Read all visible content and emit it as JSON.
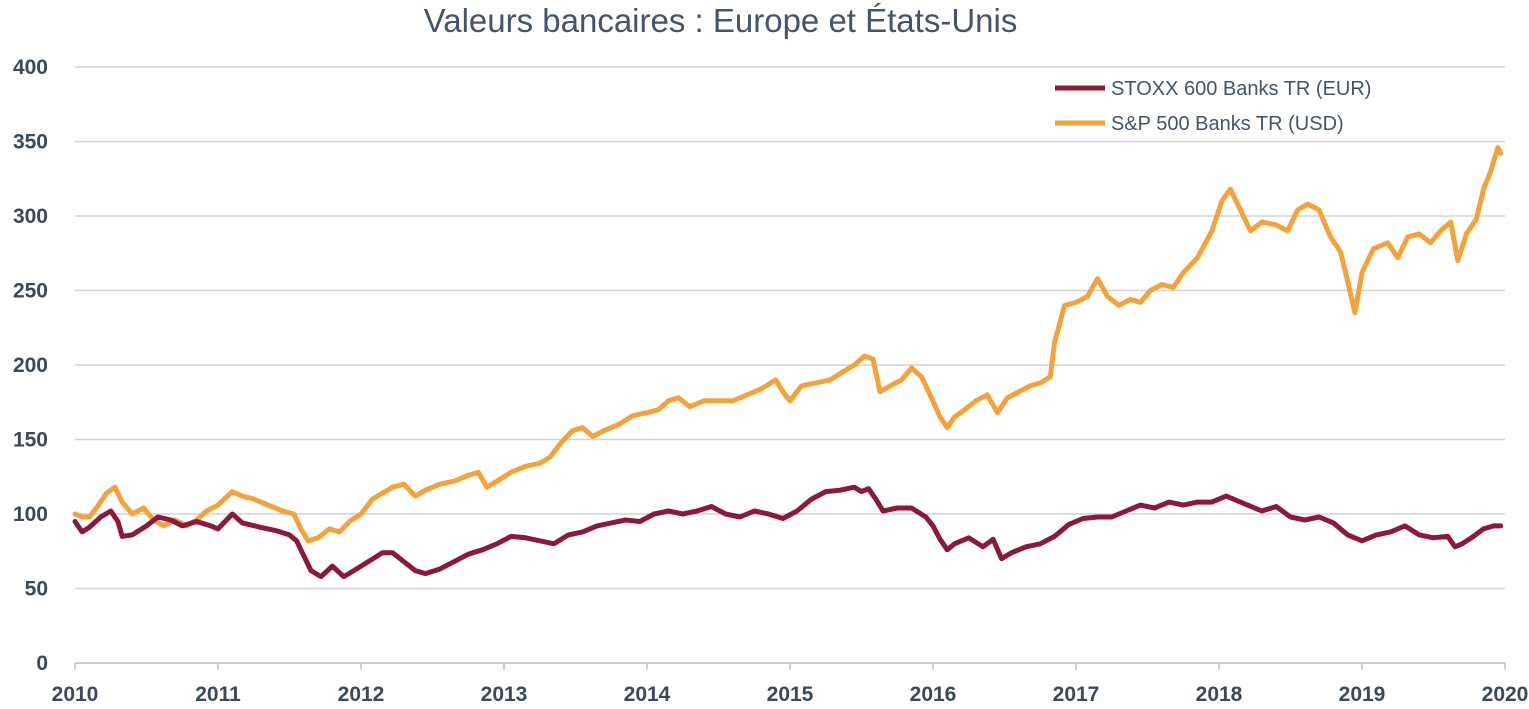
{
  "chart_data": {
    "type": "line",
    "title": "Valeurs bancaires : Europe et États-Unis",
    "xlabel": "",
    "ylabel": "",
    "ylim": [
      0,
      400
    ],
    "xlim": [
      2010,
      2020
    ],
    "yticks": [
      "0",
      "50",
      "100",
      "150",
      "200",
      "250",
      "300",
      "350",
      "400"
    ],
    "xticks": [
      "2010",
      "2011",
      "2012",
      "2013",
      "2014",
      "2015",
      "2016",
      "2017",
      "2018",
      "2019",
      "2020"
    ],
    "grid": true,
    "legend_position": "top-right",
    "series": [
      {
        "name": "STOXX 600 Banks TR (EUR)",
        "color": "#8b1a3a",
        "points": [
          [
            2010.0,
            95
          ],
          [
            2010.05,
            88
          ],
          [
            2010.1,
            91
          ],
          [
            2010.18,
            98
          ],
          [
            2010.25,
            102
          ],
          [
            2010.3,
            95
          ],
          [
            2010.33,
            85
          ],
          [
            2010.4,
            86
          ],
          [
            2010.5,
            92
          ],
          [
            2010.58,
            98
          ],
          [
            2010.67,
            96
          ],
          [
            2010.75,
            92
          ],
          [
            2010.85,
            95
          ],
          [
            2010.95,
            92
          ],
          [
            2011.0,
            90
          ],
          [
            2011.1,
            100
          ],
          [
            2011.17,
            94
          ],
          [
            2011.3,
            91
          ],
          [
            2011.4,
            89
          ],
          [
            2011.5,
            86
          ],
          [
            2011.55,
            82
          ],
          [
            2011.6,
            72
          ],
          [
            2011.65,
            62
          ],
          [
            2011.72,
            58
          ],
          [
            2011.8,
            65
          ],
          [
            2011.88,
            58
          ],
          [
            2011.95,
            62
          ],
          [
            2012.05,
            68
          ],
          [
            2012.15,
            74
          ],
          [
            2012.22,
            74
          ],
          [
            2012.3,
            68
          ],
          [
            2012.38,
            62
          ],
          [
            2012.45,
            60
          ],
          [
            2012.55,
            63
          ],
          [
            2012.65,
            68
          ],
          [
            2012.75,
            73
          ],
          [
            2012.85,
            76
          ],
          [
            2012.95,
            80
          ],
          [
            2013.05,
            85
          ],
          [
            2013.15,
            84
          ],
          [
            2013.25,
            82
          ],
          [
            2013.35,
            80
          ],
          [
            2013.45,
            86
          ],
          [
            2013.55,
            88
          ],
          [
            2013.65,
            92
          ],
          [
            2013.75,
            94
          ],
          [
            2013.85,
            96
          ],
          [
            2013.95,
            95
          ],
          [
            2014.05,
            100
          ],
          [
            2014.15,
            102
          ],
          [
            2014.25,
            100
          ],
          [
            2014.35,
            102
          ],
          [
            2014.45,
            105
          ],
          [
            2014.55,
            100
          ],
          [
            2014.65,
            98
          ],
          [
            2014.75,
            102
          ],
          [
            2014.85,
            100
          ],
          [
            2014.95,
            97
          ],
          [
            2015.05,
            102
          ],
          [
            2015.15,
            110
          ],
          [
            2015.25,
            115
          ],
          [
            2015.35,
            116
          ],
          [
            2015.45,
            118
          ],
          [
            2015.5,
            115
          ],
          [
            2015.55,
            117
          ],
          [
            2015.6,
            110
          ],
          [
            2015.65,
            102
          ],
          [
            2015.75,
            104
          ],
          [
            2015.85,
            104
          ],
          [
            2015.95,
            98
          ],
          [
            2016.0,
            92
          ],
          [
            2016.05,
            83
          ],
          [
            2016.1,
            76
          ],
          [
            2016.15,
            80
          ],
          [
            2016.25,
            84
          ],
          [
            2016.35,
            78
          ],
          [
            2016.42,
            83
          ],
          [
            2016.48,
            70
          ],
          [
            2016.55,
            74
          ],
          [
            2016.65,
            78
          ],
          [
            2016.75,
            80
          ],
          [
            2016.85,
            85
          ],
          [
            2016.95,
            93
          ],
          [
            2017.05,
            97
          ],
          [
            2017.15,
            98
          ],
          [
            2017.25,
            98
          ],
          [
            2017.35,
            102
          ],
          [
            2017.45,
            106
          ],
          [
            2017.55,
            104
          ],
          [
            2017.65,
            108
          ],
          [
            2017.75,
            106
          ],
          [
            2017.85,
            108
          ],
          [
            2017.95,
            108
          ],
          [
            2018.05,
            112
          ],
          [
            2018.1,
            110
          ],
          [
            2018.2,
            106
          ],
          [
            2018.3,
            102
          ],
          [
            2018.4,
            105
          ],
          [
            2018.5,
            98
          ],
          [
            2018.6,
            96
          ],
          [
            2018.7,
            98
          ],
          [
            2018.8,
            94
          ],
          [
            2018.9,
            86
          ],
          [
            2019.0,
            82
          ],
          [
            2019.1,
            86
          ],
          [
            2019.2,
            88
          ],
          [
            2019.3,
            92
          ],
          [
            2019.4,
            86
          ],
          [
            2019.5,
            84
          ],
          [
            2019.6,
            85
          ],
          [
            2019.65,
            78
          ],
          [
            2019.7,
            80
          ],
          [
            2019.78,
            85
          ],
          [
            2019.85,
            90
          ],
          [
            2019.92,
            92
          ],
          [
            2019.97,
            92
          ]
        ]
      },
      {
        "name": "S&P 500 Banks TR (USD)",
        "color": "#f4a23c",
        "points": [
          [
            2010.0,
            100
          ],
          [
            2010.05,
            98
          ],
          [
            2010.1,
            98
          ],
          [
            2010.15,
            104
          ],
          [
            2010.22,
            114
          ],
          [
            2010.28,
            118
          ],
          [
            2010.33,
            108
          ],
          [
            2010.4,
            100
          ],
          [
            2010.48,
            104
          ],
          [
            2010.55,
            96
          ],
          [
            2010.62,
            92
          ],
          [
            2010.7,
            96
          ],
          [
            2010.78,
            92
          ],
          [
            2010.85,
            96
          ],
          [
            2010.92,
            102
          ],
          [
            2011.0,
            106
          ],
          [
            2011.1,
            115
          ],
          [
            2011.17,
            112
          ],
          [
            2011.25,
            110
          ],
          [
            2011.35,
            106
          ],
          [
            2011.45,
            102
          ],
          [
            2011.53,
            100
          ],
          [
            2011.58,
            90
          ],
          [
            2011.63,
            82
          ],
          [
            2011.7,
            84
          ],
          [
            2011.78,
            90
          ],
          [
            2011.85,
            88
          ],
          [
            2011.92,
            95
          ],
          [
            2012.0,
            100
          ],
          [
            2012.08,
            110
          ],
          [
            2012.15,
            114
          ],
          [
            2012.22,
            118
          ],
          [
            2012.3,
            120
          ],
          [
            2012.38,
            112
          ],
          [
            2012.45,
            116
          ],
          [
            2012.55,
            120
          ],
          [
            2012.65,
            122
          ],
          [
            2012.75,
            126
          ],
          [
            2012.82,
            128
          ],
          [
            2012.88,
            118
          ],
          [
            2012.95,
            122
          ],
          [
            2013.05,
            128
          ],
          [
            2013.15,
            132
          ],
          [
            2013.25,
            134
          ],
          [
            2013.32,
            138
          ],
          [
            2013.4,
            148
          ],
          [
            2013.48,
            156
          ],
          [
            2013.55,
            158
          ],
          [
            2013.62,
            152
          ],
          [
            2013.7,
            156
          ],
          [
            2013.8,
            160
          ],
          [
            2013.9,
            166
          ],
          [
            2014.0,
            168
          ],
          [
            2014.08,
            170
          ],
          [
            2014.15,
            176
          ],
          [
            2014.22,
            178
          ],
          [
            2014.3,
            172
          ],
          [
            2014.4,
            176
          ],
          [
            2014.5,
            176
          ],
          [
            2014.6,
            176
          ],
          [
            2014.7,
            180
          ],
          [
            2014.8,
            184
          ],
          [
            2014.9,
            190
          ],
          [
            2014.95,
            182
          ],
          [
            2015.0,
            176
          ],
          [
            2015.08,
            186
          ],
          [
            2015.18,
            188
          ],
          [
            2015.28,
            190
          ],
          [
            2015.38,
            196
          ],
          [
            2015.45,
            200
          ],
          [
            2015.52,
            206
          ],
          [
            2015.58,
            204
          ],
          [
            2015.63,
            182
          ],
          [
            2015.7,
            186
          ],
          [
            2015.78,
            190
          ],
          [
            2015.85,
            198
          ],
          [
            2015.92,
            192
          ],
          [
            2015.98,
            180
          ],
          [
            2016.05,
            165
          ],
          [
            2016.1,
            158
          ],
          [
            2016.15,
            165
          ],
          [
            2016.22,
            170
          ],
          [
            2016.3,
            176
          ],
          [
            2016.38,
            180
          ],
          [
            2016.45,
            168
          ],
          [
            2016.52,
            178
          ],
          [
            2016.6,
            182
          ],
          [
            2016.68,
            186
          ],
          [
            2016.75,
            188
          ],
          [
            2016.82,
            192
          ],
          [
            2016.85,
            215
          ],
          [
            2016.92,
            240
          ],
          [
            2017.0,
            242
          ],
          [
            2017.08,
            246
          ],
          [
            2017.15,
            258
          ],
          [
            2017.22,
            246
          ],
          [
            2017.3,
            240
          ],
          [
            2017.38,
            244
          ],
          [
            2017.45,
            242
          ],
          [
            2017.52,
            250
          ],
          [
            2017.6,
            254
          ],
          [
            2017.68,
            252
          ],
          [
            2017.75,
            262
          ],
          [
            2017.85,
            272
          ],
          [
            2017.95,
            290
          ],
          [
            2018.02,
            310
          ],
          [
            2018.08,
            318
          ],
          [
            2018.15,
            304
          ],
          [
            2018.22,
            290
          ],
          [
            2018.3,
            296
          ],
          [
            2018.4,
            294
          ],
          [
            2018.48,
            290
          ],
          [
            2018.55,
            304
          ],
          [
            2018.62,
            308
          ],
          [
            2018.7,
            304
          ],
          [
            2018.78,
            286
          ],
          [
            2018.85,
            276
          ],
          [
            2018.9,
            256
          ],
          [
            2018.95,
            235
          ],
          [
            2019.0,
            262
          ],
          [
            2019.08,
            278
          ],
          [
            2019.18,
            282
          ],
          [
            2019.25,
            272
          ],
          [
            2019.32,
            286
          ],
          [
            2019.4,
            288
          ],
          [
            2019.48,
            282
          ],
          [
            2019.55,
            290
          ],
          [
            2019.62,
            296
          ],
          [
            2019.67,
            270
          ],
          [
            2019.73,
            288
          ],
          [
            2019.8,
            298
          ],
          [
            2019.85,
            318
          ],
          [
            2019.9,
            330
          ],
          [
            2019.95,
            346
          ],
          [
            2019.97,
            342
          ]
        ]
      }
    ]
  }
}
